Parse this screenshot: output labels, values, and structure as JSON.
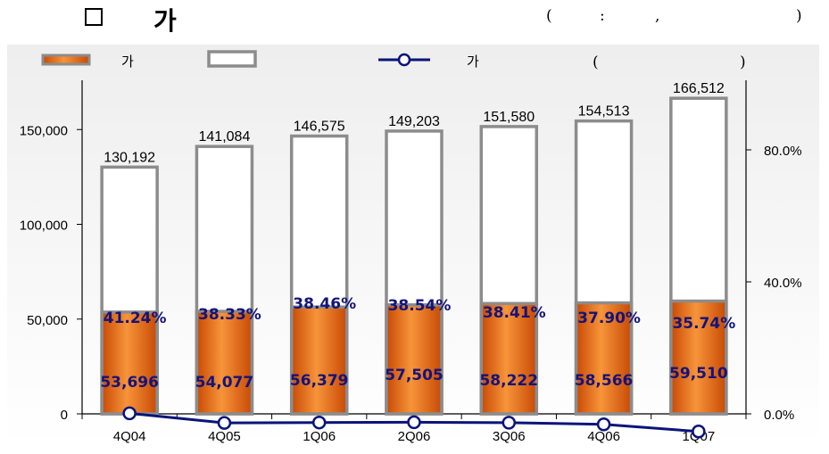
{
  "header": {
    "title": "가",
    "unit_note": {
      "open": "(",
      "colon": ":",
      "comma": ",",
      "close": ")"
    }
  },
  "legend": {
    "items": [
      {
        "label": "가",
        "marker": "bar-orange"
      },
      {
        "label": "",
        "marker": "bar-white"
      },
      {
        "label": "가",
        "marker": "line-navy"
      },
      {
        "label": "(  )",
        "marker": "text"
      }
    ]
  },
  "colors": {
    "orange": "#e8620f",
    "orange_light": "#f7a45c",
    "bar_outline": "#8c8c8c",
    "line": "#0a147a",
    "pct_label": "#14147a",
    "plot_bg_top": "#f2f2f2",
    "plot_bg_bottom": "#ffffff"
  },
  "chart_data": {
    "type": "bar",
    "categories": [
      "4Q04",
      "4Q05",
      "1Q06",
      "2Q06",
      "3Q06",
      "4Q06",
      "1Q07"
    ],
    "series": [
      {
        "values": [
          53696,
          54077,
          56379,
          57505,
          58222,
          58566,
          59510
        ],
        "labels": [
          "53,696",
          "54,077",
          "56,379",
          "57,505",
          "58,222",
          "58,566",
          "59,510"
        ],
        "kind": "bar",
        "axis": "left"
      },
      {
        "values": [
          130192,
          141084,
          146575,
          149203,
          151580,
          154513,
          166512
        ],
        "labels": [
          "130,192",
          "141,084",
          "146,575",
          "149,203",
          "151,580",
          "154,513",
          "166,512"
        ],
        "kind": "bar-total",
        "axis": "left"
      },
      {
        "values": [
          41.24,
          38.33,
          38.46,
          38.54,
          38.41,
          37.9,
          35.74
        ],
        "labels": [
          "41.24%",
          "38.33%",
          "38.46%",
          "38.54%",
          "38.41%",
          "37.90%",
          "35.74%"
        ],
        "kind": "line",
        "axis": "right"
      }
    ],
    "y_left": {
      "min": 0,
      "max": 170000,
      "ticks": [
        0,
        50000,
        100000,
        150000
      ],
      "tick_labels": [
        "0",
        "50,000",
        "100,000",
        "150,000"
      ]
    },
    "y_right": {
      "min": 0,
      "max": 100,
      "ticks": [
        0,
        40,
        80
      ],
      "tick_labels": [
        "0.0%",
        "40.0%",
        "80.0%"
      ]
    },
    "grid": false,
    "legend_position": "top"
  }
}
